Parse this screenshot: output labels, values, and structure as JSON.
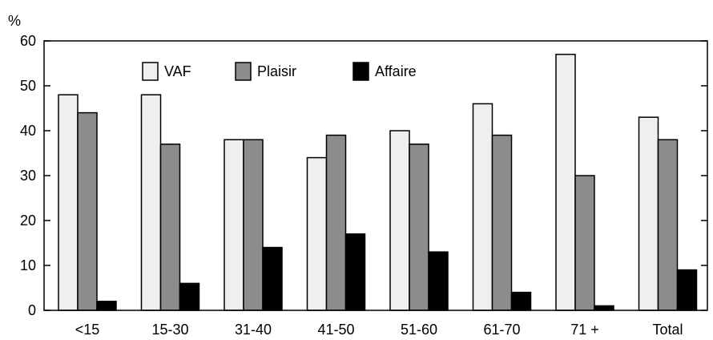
{
  "chart_data": {
    "type": "bar",
    "title": "",
    "xlabel": "",
    "ylabel": "%",
    "ylim": [
      0,
      60
    ],
    "yticks": [
      0,
      10,
      20,
      30,
      40,
      50,
      60
    ],
    "grid": false,
    "legend_position": "top-left",
    "categories": [
      "<15",
      "15-30",
      "31-40",
      "41-50",
      "51-60",
      "61-70",
      "71 +",
      "Total"
    ],
    "series": [
      {
        "name": "VAF",
        "color": "#efefef",
        "values": [
          48,
          48,
          38,
          34,
          40,
          46,
          57,
          43
        ]
      },
      {
        "name": "Plaisir",
        "color": "#8c8c8c",
        "values": [
          44,
          37,
          38,
          39,
          37,
          39,
          30,
          38
        ]
      },
      {
        "name": "Affaire",
        "color": "#000000",
        "values": [
          2,
          6,
          14,
          17,
          13,
          4,
          1,
          9
        ]
      }
    ]
  }
}
